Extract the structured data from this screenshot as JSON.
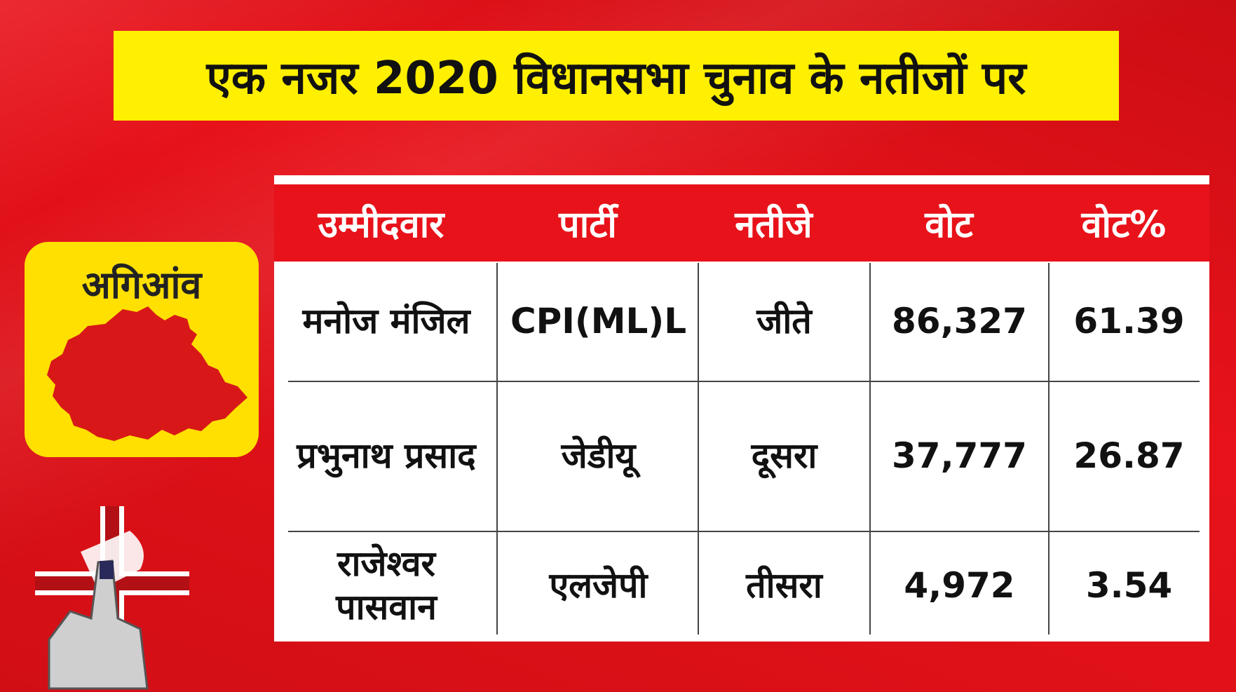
{
  "title": "एक नजर 2020 विधानसभा चुनाव के नतीजों पर",
  "constituency": "अगिआंव",
  "headers": [
    "उम्मीदवार",
    "पार्टी",
    "नतीजे",
    "वोट",
    "वोट%"
  ],
  "rows": [
    {
      "candidate": "मनोज मंजिल",
      "party": "CPI(ML)L",
      "result": "जीते",
      "votes": "86,327",
      "vote_pct": "61.39"
    },
    {
      "candidate": "प्रभुनाथ प्रसाद",
      "party": "जेडीयू",
      "result": "दूसरा",
      "votes": "37,777",
      "vote_pct": "26.87"
    },
    {
      "candidate": "राजेश्वर पासवान",
      "party": "एलजेपी",
      "result": "तीसरा",
      "votes": "4,972",
      "vote_pct": "3.54"
    }
  ],
  "colors": {
    "background": "#e8121a",
    "title_bg": "#ffef00",
    "card_bg": "#ffe000",
    "map_fill": "#d81818"
  }
}
